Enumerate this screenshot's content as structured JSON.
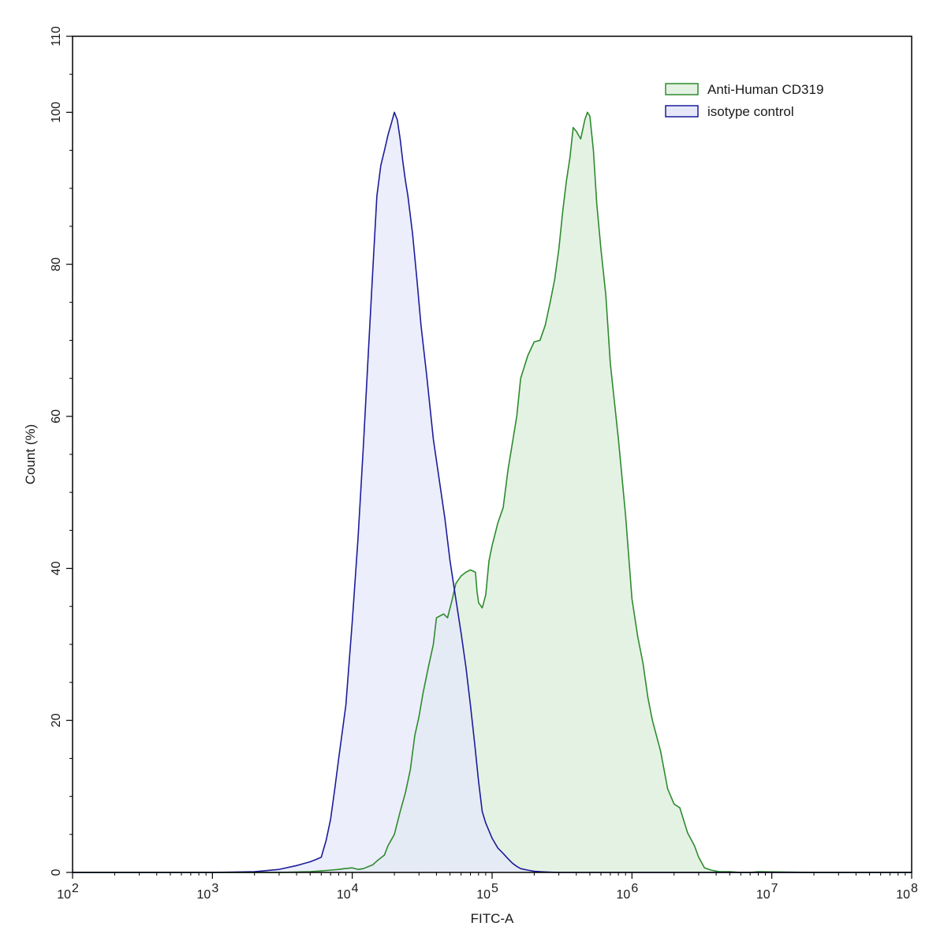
{
  "chart_data": {
    "type": "area",
    "xlabel": "FITC-A",
    "ylabel": "Count  (%)",
    "x_scale": "log10",
    "xlim": [
      100,
      100000000
    ],
    "ylim": [
      0,
      110
    ],
    "x_ticks": [
      {
        "value": 100,
        "base": "10",
        "exp": "2"
      },
      {
        "value": 1000,
        "base": "10",
        "exp": "3"
      },
      {
        "value": 10000,
        "base": "10",
        "exp": "4"
      },
      {
        "value": 100000,
        "base": "10",
        "exp": "5"
      },
      {
        "value": 1000000,
        "base": "10",
        "exp": "6"
      },
      {
        "value": 10000000,
        "base": "10",
        "exp": "7"
      },
      {
        "value": 100000000,
        "base": "10",
        "exp": "8"
      }
    ],
    "y_ticks": [
      "0",
      "20",
      "40",
      "60",
      "80",
      "100",
      "110"
    ],
    "legend_position": "top-right",
    "series": [
      {
        "name": "Anti-Human CD319",
        "line_color": "#2e8b2e",
        "fill_color": "#e4f2e4",
        "x": [
          100,
          1900,
          3000,
          5000,
          6000,
          7000,
          8000,
          8800,
          10000,
          11000,
          12000,
          14000,
          15000,
          17000,
          18000,
          20000,
          22000,
          24000,
          26000,
          28000,
          30000,
          32000,
          35000,
          38000,
          40000,
          45000,
          48000,
          52000,
          55000,
          60000,
          65000,
          70000,
          76000,
          78000,
          80000,
          85000,
          90000,
          95000,
          100000,
          110000,
          120000,
          130000,
          150000,
          160000,
          180000,
          200000,
          220000,
          240000,
          260000,
          280000,
          300000,
          320000,
          340000,
          360000,
          380000,
          400000,
          430000,
          460000,
          480000,
          500000,
          530000,
          560000,
          600000,
          650000,
          700000,
          800000,
          900000,
          1000000,
          1100000,
          1200000,
          1300000,
          1400000,
          1600000,
          1800000,
          2000000,
          2200000,
          2500000,
          2800000,
          3000000,
          3300000,
          3700000,
          4200000,
          5000000,
          6000000,
          7000000,
          8000000,
          20000000,
          100000000
        ],
        "y": [
          0,
          0,
          0,
          0.1,
          0.2,
          0.3,
          0.4,
          0.5,
          0.6,
          0.4,
          0.5,
          1.0,
          1.5,
          2.3,
          3.5,
          5,
          8,
          10.5,
          13.5,
          18,
          20.5,
          23.5,
          27,
          30,
          33.5,
          34,
          33.5,
          36,
          38,
          39,
          39.5,
          39.8,
          39.5,
          37,
          35.5,
          34.8,
          36.5,
          41,
          43,
          46,
          48,
          53,
          60,
          65,
          68,
          69.8,
          70,
          72,
          75,
          78,
          82,
          87,
          91,
          94,
          98,
          97.5,
          96.5,
          99,
          100,
          99.5,
          95,
          88,
          82,
          76,
          67,
          57,
          47,
          36,
          31,
          27.5,
          23,
          20,
          16,
          11,
          9,
          8.5,
          5.2,
          3.5,
          2,
          0.6,
          0.3,
          0.1,
          0.1,
          0,
          0,
          0.1,
          0,
          0
        ]
      },
      {
        "name": "isotype control",
        "line_color": "#1c1c9a",
        "fill_color": "#e6e8f9",
        "x": [
          100,
          1000,
          2000,
          3000,
          4000,
          5000,
          5500,
          6000,
          6500,
          7000,
          7500,
          8000,
          9000,
          10000,
          11000,
          12000,
          13000,
          14000,
          15000,
          16000,
          17000,
          18000,
          19000,
          20000,
          21000,
          22000,
          23000,
          24000,
          25000,
          27000,
          29000,
          31000,
          34000,
          38000,
          42000,
          46000,
          50000,
          55000,
          60000,
          65000,
          70000,
          75000,
          80000,
          85000,
          90000,
          100000,
          110000,
          120000,
          130000,
          140000,
          150000,
          160000,
          180000,
          200000,
          220000,
          250000,
          300000,
          400000,
          600000,
          800000,
          1000000,
          1300000,
          100000000
        ],
        "y": [
          0,
          0,
          0.1,
          0.4,
          0.9,
          1.4,
          1.7,
          2.0,
          4.2,
          7.0,
          11.0,
          15.0,
          22.0,
          33.0,
          44.0,
          56.0,
          68.0,
          79.0,
          89.0,
          93.0,
          95.0,
          97.0,
          98.5,
          100.0,
          99.0,
          96.5,
          93.5,
          91.0,
          89.0,
          84.0,
          78.0,
          72.0,
          65.5,
          57.0,
          51.5,
          46.5,
          41.0,
          36.0,
          31.5,
          27.0,
          22.0,
          17.0,
          12.0,
          8.0,
          6.5,
          4.5,
          3.2,
          2.5,
          1.8,
          1.2,
          0.8,
          0.5,
          0.3,
          0.15,
          0.1,
          0.05,
          0,
          0,
          0,
          0,
          0,
          0,
          0
        ]
      }
    ]
  }
}
